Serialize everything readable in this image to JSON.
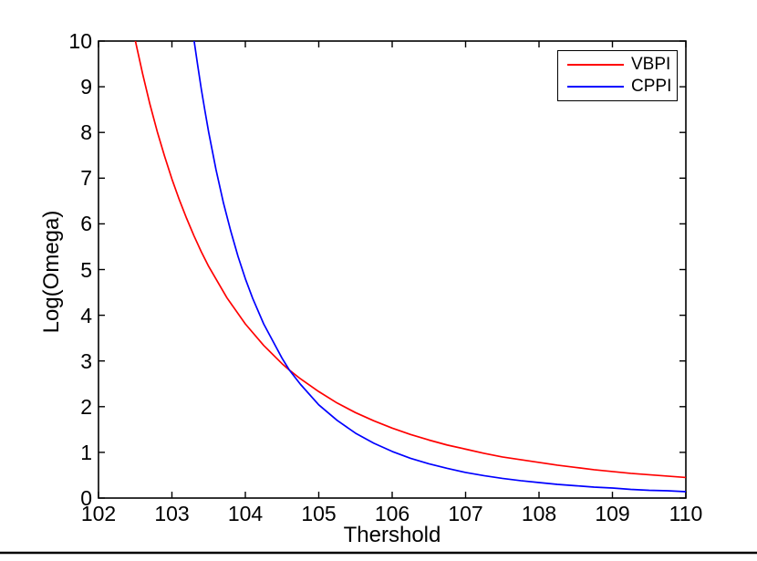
{
  "figure": {
    "background_color": "#ffffff",
    "axis_color": "#000000",
    "bottom_rule_color": "#000000"
  },
  "legend": {
    "position": "top-right",
    "entries": [
      {
        "label": "VBPI",
        "color": "#ff0000"
      },
      {
        "label": "CPPI",
        "color": "#0000ff"
      }
    ]
  },
  "chart_data": {
    "type": "line",
    "title": "",
    "xlabel": "Thershold",
    "ylabel": "Log(Omega)",
    "xlim": [
      102,
      110
    ],
    "ylim": [
      0,
      10
    ],
    "x_ticks": [
      102,
      103,
      104,
      105,
      106,
      107,
      108,
      109,
      110
    ],
    "y_ticks": [
      0,
      1,
      2,
      3,
      4,
      5,
      6,
      7,
      8,
      9,
      10
    ],
    "grid": false,
    "legend_position": "top-right",
    "series": [
      {
        "name": "VBPI",
        "color": "#ff0000",
        "points": [
          [
            102.5,
            10.02
          ],
          [
            102.6,
            9.29
          ],
          [
            102.7,
            8.62
          ],
          [
            102.8,
            8.02
          ],
          [
            102.9,
            7.48
          ],
          [
            103.0,
            6.98
          ],
          [
            103.1,
            6.53
          ],
          [
            103.2,
            6.12
          ],
          [
            103.3,
            5.74
          ],
          [
            103.4,
            5.39
          ],
          [
            103.5,
            5.07
          ],
          [
            103.75,
            4.38
          ],
          [
            104.0,
            3.81
          ],
          [
            104.25,
            3.34
          ],
          [
            104.5,
            2.94
          ],
          [
            104.6,
            2.8
          ],
          [
            104.75,
            2.61
          ],
          [
            105.0,
            2.33
          ],
          [
            105.25,
            2.08
          ],
          [
            105.5,
            1.87
          ],
          [
            105.75,
            1.69
          ],
          [
            106.0,
            1.53
          ],
          [
            106.25,
            1.39
          ],
          [
            106.5,
            1.27
          ],
          [
            106.75,
            1.16
          ],
          [
            107.0,
            1.07
          ],
          [
            107.25,
            0.98
          ],
          [
            107.5,
            0.9
          ],
          [
            107.75,
            0.84
          ],
          [
            108.0,
            0.78
          ],
          [
            108.25,
            0.72
          ],
          [
            108.5,
            0.67
          ],
          [
            108.75,
            0.62
          ],
          [
            109.0,
            0.58
          ],
          [
            109.25,
            0.54
          ],
          [
            109.5,
            0.51
          ],
          [
            109.75,
            0.48
          ],
          [
            110.0,
            0.45
          ]
        ]
      },
      {
        "name": "CPPI",
        "color": "#0000ff",
        "points": [
          [
            103.3,
            10.03
          ],
          [
            103.35,
            9.48
          ],
          [
            103.4,
            8.95
          ],
          [
            103.45,
            8.47
          ],
          [
            103.5,
            8.01
          ],
          [
            103.6,
            7.19
          ],
          [
            103.7,
            6.47
          ],
          [
            103.8,
            5.85
          ],
          [
            103.9,
            5.29
          ],
          [
            104.0,
            4.8
          ],
          [
            104.1,
            4.37
          ],
          [
            104.25,
            3.81
          ],
          [
            104.5,
            3.06
          ],
          [
            104.6,
            2.8
          ],
          [
            104.75,
            2.49
          ],
          [
            105.0,
            2.04
          ],
          [
            105.25,
            1.7
          ],
          [
            105.5,
            1.42
          ],
          [
            105.75,
            1.2
          ],
          [
            106.0,
            1.02
          ],
          [
            106.25,
            0.87
          ],
          [
            106.5,
            0.75
          ],
          [
            106.75,
            0.65
          ],
          [
            107.0,
            0.56
          ],
          [
            107.25,
            0.49
          ],
          [
            107.5,
            0.43
          ],
          [
            107.75,
            0.38
          ],
          [
            108.0,
            0.34
          ],
          [
            108.25,
            0.3
          ],
          [
            108.5,
            0.27
          ],
          [
            108.75,
            0.24
          ],
          [
            109.0,
            0.22
          ],
          [
            109.25,
            0.19
          ],
          [
            109.5,
            0.17
          ],
          [
            109.75,
            0.16
          ],
          [
            110.0,
            0.14
          ]
        ]
      }
    ]
  }
}
